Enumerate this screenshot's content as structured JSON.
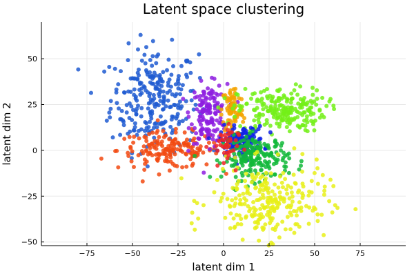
{
  "chart_data": {
    "type": "scatter",
    "title": "Latent space clustering",
    "xlabel": "latent dim 1",
    "ylabel": "latent dim 2",
    "xlim": [
      -100,
      100
    ],
    "ylim": [
      -52,
      70
    ],
    "xticks": [
      -75,
      -50,
      -25,
      0,
      25,
      50,
      75
    ],
    "yticks": [
      -50,
      -25,
      0,
      25,
      50
    ],
    "xtick_labels": [
      "−75",
      "−50",
      "−25",
      "0",
      "25",
      "50",
      "75"
    ],
    "ytick_labels": [
      "−50",
      "−25",
      "0",
      "25",
      "50"
    ],
    "grid": true,
    "legend": "none",
    "series": [
      {
        "color": "#1f5bd1",
        "center": [
          -38,
          28
        ],
        "spread": [
          12,
          14
        ],
        "count": 260
      },
      {
        "color": "#f24a12",
        "center": [
          -30,
          0
        ],
        "spread": [
          14,
          5
        ],
        "count": 170
      },
      {
        "color": "#8e1ee0",
        "center": [
          -8,
          20
        ],
        "spread": [
          5,
          8
        ],
        "count": 150
      },
      {
        "color": "#f5a300",
        "center": [
          5,
          22
        ],
        "spread": [
          3,
          7
        ],
        "count": 80
      },
      {
        "color": "#73f018",
        "center": [
          32,
          22
        ],
        "spread": [
          12,
          6
        ],
        "count": 220
      },
      {
        "color": "#0f22e6",
        "center": [
          10,
          5
        ],
        "spread": [
          6,
          4
        ],
        "count": 140
      },
      {
        "color": "#12b83a",
        "center": [
          18,
          -4
        ],
        "spread": [
          9,
          6
        ],
        "count": 200
      },
      {
        "color": "#e8f018",
        "center": [
          25,
          -28
        ],
        "spread": [
          16,
          10
        ],
        "count": 260
      },
      {
        "color": "#ee2424",
        "center": [
          0,
          2
        ],
        "spread": [
          4,
          6
        ],
        "count": 40
      }
    ]
  }
}
